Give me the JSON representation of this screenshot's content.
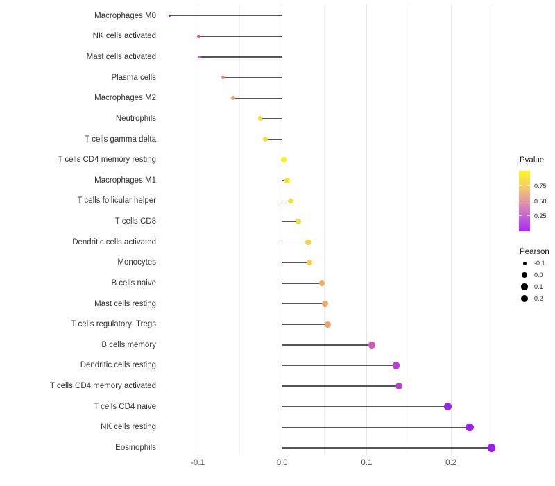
{
  "chart_data": {
    "type": "scatter",
    "subtype": "lollipop",
    "orientation": "horizontal",
    "title": "",
    "xlabel": "",
    "ylabel": "",
    "xlim": [
      -0.152,
      0.268
    ],
    "x_ticks": [
      {
        "value": -0.1,
        "label": "-0.1"
      },
      {
        "value": 0.0,
        "label": "0.0"
      },
      {
        "value": 0.1,
        "label": "0.1"
      },
      {
        "value": 0.2,
        "label": "0.2"
      }
    ],
    "grid": {
      "major_step": 0.1,
      "minor_step": 0.05,
      "major_color": "#e8e8e8",
      "minor_color": "#f3f3f3"
    },
    "stem_color": "#555555",
    "encoding": {
      "x": "Pearson correlation",
      "size": "Pearson",
      "color": "Pvalue (plasma gradient)"
    },
    "items": [
      {
        "label": "Macrophages M0",
        "pearson": -0.133,
        "color": "#8b0aa5"
      },
      {
        "label": "NK cells activated",
        "pearson": -0.099,
        "color": "#cb63a9"
      },
      {
        "label": "Mast cells activated",
        "pearson": -0.098,
        "color": "#cb63a9"
      },
      {
        "label": "Plasma cells",
        "pearson": -0.07,
        "color": "#e78874"
      },
      {
        "label": "Macrophages M2",
        "pearson": -0.058,
        "color": "#eb9c63"
      },
      {
        "label": "Neutrophils",
        "pearson": -0.026,
        "color": "#f4e134"
      },
      {
        "label": "T cells gamma delta",
        "pearson": -0.02,
        "color": "#f4e42c"
      },
      {
        "label": "T cells CD4 memory resting",
        "pearson": 0.002,
        "color": "#f4f021"
      },
      {
        "label": "Macrophages M1",
        "pearson": 0.006,
        "color": "#f5e42c"
      },
      {
        "label": "T cells follicular helper",
        "pearson": 0.01,
        "color": "#f5e230"
      },
      {
        "label": "T cells CD8",
        "pearson": 0.019,
        "color": "#f4da3a"
      },
      {
        "label": "Dendritic cells activated",
        "pearson": 0.031,
        "color": "#f5d04a"
      },
      {
        "label": "Monocytes",
        "pearson": 0.032,
        "color": "#f4ce4c"
      },
      {
        "label": "B cells naive",
        "pearson": 0.047,
        "color": "#f0a966"
      },
      {
        "label": "Mast cells resting",
        "pearson": 0.051,
        "color": "#f0a768"
      },
      {
        "label": "T cells regulatory  Tregs",
        "pearson": 0.054,
        "color": "#efa46b"
      },
      {
        "label": "B cells memory",
        "pearson": 0.106,
        "color": "#c75bb4"
      },
      {
        "label": "Dendritic cells resting",
        "pearson": 0.135,
        "color": "#b440d4"
      },
      {
        "label": "T cells CD4 memory activated",
        "pearson": 0.138,
        "color": "#b33ed6"
      },
      {
        "label": "T cells CD4 naive",
        "pearson": 0.196,
        "color": "#9c27e7"
      },
      {
        "label": "NK cells resting",
        "pearson": 0.222,
        "color": "#9a22ec"
      },
      {
        "label": "Eosinophils",
        "pearson": 0.248,
        "color": "#991df0"
      }
    ]
  },
  "legend": {
    "pvalue": {
      "title": "Pvalue",
      "tick_labels": [
        "0.75",
        "0.50",
        "0.25"
      ],
      "gradient": [
        "#fbf823",
        "#f5cf68",
        "#e3999f",
        "#c364cf",
        "#a42af5"
      ]
    },
    "pearson": {
      "title": "Pearson",
      "entries": [
        {
          "label": "-0.1",
          "diameter": 5.0
        },
        {
          "label": "0.0",
          "diameter": 7.4
        },
        {
          "label": "0.1",
          "diameter": 9.2
        },
        {
          "label": "0.2",
          "diameter": 10.9
        }
      ]
    }
  }
}
